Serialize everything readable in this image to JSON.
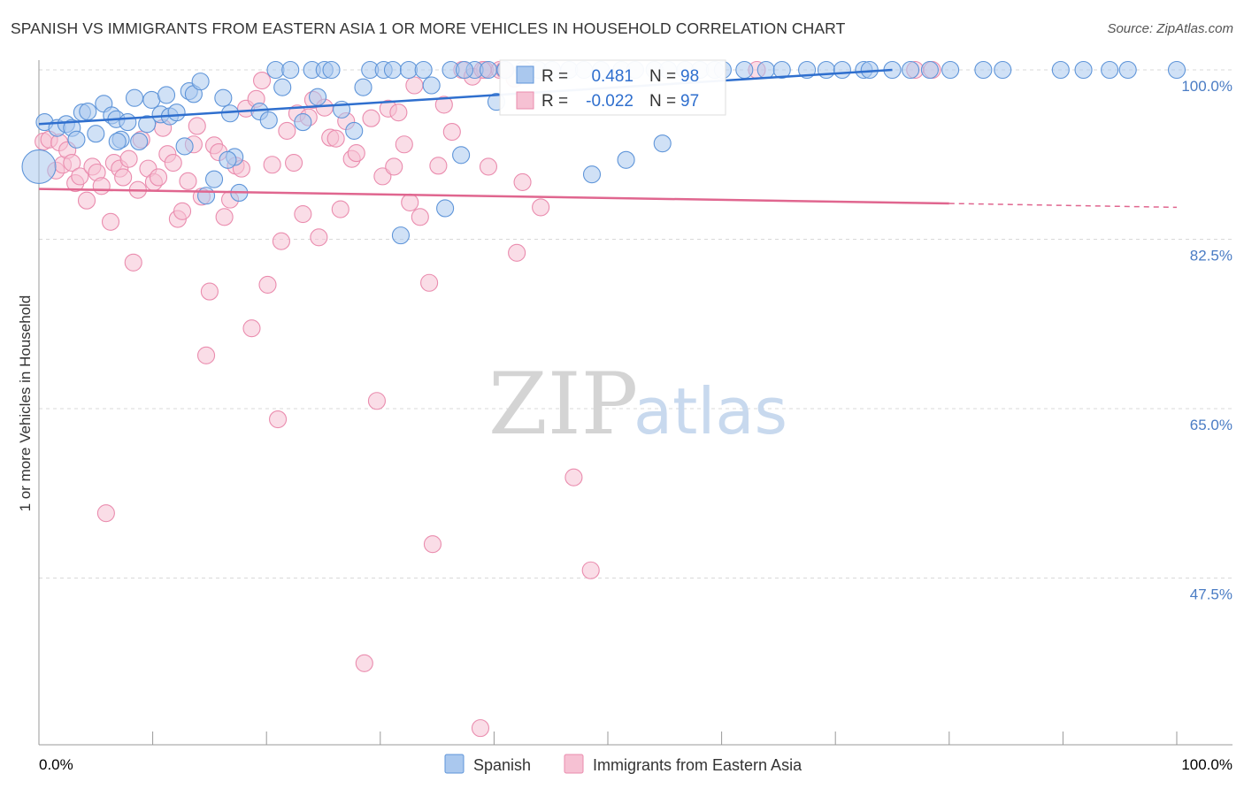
{
  "title": "SPANISH VS IMMIGRANTS FROM EASTERN ASIA 1 OR MORE VEHICLES IN HOUSEHOLD CORRELATION CHART",
  "source": "Source: ZipAtlas.com",
  "watermark": {
    "zip": "ZIP",
    "atlas": "atlas"
  },
  "colors": {
    "blue_fill": "#aac8ee",
    "blue_stroke": "#5f95d9",
    "blue_line": "#2f6fce",
    "pink_fill": "#f6c1d3",
    "pink_stroke": "#ea8cae",
    "pink_line": "#e0668f",
    "tick_label": "#4a7cc4",
    "grid": "#d8d8d8",
    "axis": "#999999"
  },
  "stats": [
    {
      "r_label": "R =",
      "r_value": "0.481",
      "n_label": "N =",
      "n_value": "98"
    },
    {
      "r_label": "R =",
      "r_value": "-0.022",
      "n_label": "N =",
      "n_value": "97"
    }
  ],
  "chart_data": {
    "type": "scatter",
    "title": "SPANISH VS IMMIGRANTS FROM EASTERN ASIA 1 OR MORE VEHICLES IN HOUSEHOLD CORRELATION CHART",
    "xlabel": "",
    "ylabel": "1 or more Vehicles in Household",
    "xlim": [
      0,
      100
    ],
    "ylim": [
      30,
      101.5
    ],
    "x_tick_labels": [
      "0.0%",
      "100.0%"
    ],
    "y_ticks": [
      100.0,
      82.5,
      65.0,
      47.5
    ],
    "y_tick_labels": [
      "100.0%",
      "82.5%",
      "65.0%",
      "47.5%"
    ],
    "grid": true,
    "legend_position": "bottom-center",
    "series": [
      {
        "name": "Spanish",
        "trend": {
          "x": [
            0,
            75
          ],
          "y": [
            94.4,
            100.0
          ]
        },
        "points": [
          [
            0,
            90
          ],
          [
            0.5,
            94.6
          ],
          [
            1.6,
            94.0
          ],
          [
            2.4,
            94.4
          ],
          [
            2.9,
            94.0
          ],
          [
            3.3,
            92.8
          ],
          [
            3.8,
            95.6
          ],
          [
            4.3,
            95.7
          ],
          [
            5.0,
            93.4
          ],
          [
            5.7,
            96.5
          ],
          [
            6.4,
            95.3
          ],
          [
            6.8,
            94.9
          ],
          [
            7.2,
            92.8
          ],
          [
            7.8,
            94.6
          ],
          [
            8.4,
            97.1
          ],
          [
            8.8,
            92.6
          ],
          [
            9.5,
            94.4
          ],
          [
            9.9,
            96.9
          ],
          [
            10.7,
            95.4
          ],
          [
            11.2,
            97.4
          ],
          [
            11.5,
            95.2
          ],
          [
            12.1,
            95.6
          ],
          [
            12.8,
            92.1
          ],
          [
            13.2,
            97.8
          ],
          [
            13.6,
            97.5
          ],
          [
            14.2,
            98.8
          ],
          [
            14.7,
            87.0
          ],
          [
            15.4,
            88.7
          ],
          [
            16.2,
            97.1
          ],
          [
            16.8,
            95.5
          ],
          [
            17.2,
            91.0
          ],
          [
            17.6,
            87.3
          ],
          [
            19.4,
            95.7
          ],
          [
            20.2,
            94.8
          ],
          [
            20.8,
            100.0
          ],
          [
            21.4,
            98.2
          ],
          [
            22.1,
            100.0
          ],
          [
            23.2,
            94.6
          ],
          [
            24.0,
            100.0
          ],
          [
            24.5,
            97.2
          ],
          [
            25.1,
            100.0
          ],
          [
            25.7,
            100.0
          ],
          [
            26.6,
            95.9
          ],
          [
            27.7,
            93.7
          ],
          [
            28.5,
            98.2
          ],
          [
            29.1,
            100.0
          ],
          [
            30.3,
            100.0
          ],
          [
            31.1,
            100.0
          ],
          [
            31.8,
            82.9
          ],
          [
            32.5,
            100.0
          ],
          [
            33.8,
            100.0
          ],
          [
            34.5,
            98.4
          ],
          [
            35.7,
            85.7
          ],
          [
            36.2,
            100.0
          ],
          [
            37.1,
            91.2
          ],
          [
            38.3,
            100.0
          ],
          [
            39.5,
            100.0
          ],
          [
            40.2,
            96.7
          ],
          [
            41.0,
            100.0
          ],
          [
            42.6,
            100.0
          ],
          [
            43.9,
            100.0
          ],
          [
            45.1,
            100.0
          ],
          [
            46.6,
            100.0
          ],
          [
            47.9,
            100.0
          ],
          [
            49.4,
            100.0
          ],
          [
            51.2,
            100.0
          ],
          [
            52.4,
            100.0
          ],
          [
            54.1,
            100.0
          ],
          [
            55.3,
            100.0
          ],
          [
            56.8,
            100.0
          ],
          [
            58.1,
            100.0
          ],
          [
            59.4,
            100.0
          ],
          [
            60.1,
            100.0
          ],
          [
            62.0,
            100.0
          ],
          [
            63.9,
            100.0
          ],
          [
            65.3,
            100.0
          ],
          [
            67.5,
            100.0
          ],
          [
            69.2,
            100.0
          ],
          [
            70.6,
            100.0
          ],
          [
            72.5,
            100.0
          ],
          [
            73.0,
            100.0
          ],
          [
            75.0,
            100.0
          ],
          [
            76.6,
            100.0
          ],
          [
            78.3,
            100.0
          ],
          [
            80.1,
            100.0
          ],
          [
            83.0,
            100.0
          ],
          [
            84.7,
            100.0
          ],
          [
            89.8,
            100.0
          ],
          [
            91.8,
            100.0
          ],
          [
            94.1,
            100.0
          ],
          [
            95.7,
            100.0
          ],
          [
            100.0,
            100.0
          ],
          [
            48.6,
            89.2
          ],
          [
            51.6,
            90.7
          ],
          [
            54.8,
            92.4
          ],
          [
            37.4,
            100.0
          ],
          [
            16.6,
            90.7
          ],
          [
            6.9,
            92.6
          ]
        ]
      },
      {
        "name": "Immigrants from Eastern Asia",
        "trend": {
          "x": [
            0,
            80,
            100
          ],
          "y": [
            87.7,
            86.2,
            85.8
          ]
        },
        "trend_solid_until": 80,
        "points": [
          [
            0.4,
            92.6
          ],
          [
            0.9,
            92.8
          ],
          [
            1.5,
            89.6
          ],
          [
            1.8,
            92.5
          ],
          [
            2.1,
            90.2
          ],
          [
            2.5,
            91.7
          ],
          [
            2.9,
            90.4
          ],
          [
            3.2,
            88.3
          ],
          [
            3.6,
            89.0
          ],
          [
            4.2,
            86.5
          ],
          [
            4.7,
            90.0
          ],
          [
            5.1,
            89.4
          ],
          [
            5.5,
            88.0
          ],
          [
            5.9,
            54.2
          ],
          [
            6.3,
            84.3
          ],
          [
            6.6,
            90.4
          ],
          [
            7.1,
            89.8
          ],
          [
            7.4,
            88.9
          ],
          [
            7.9,
            90.8
          ],
          [
            8.3,
            80.1
          ],
          [
            8.7,
            87.6
          ],
          [
            9.0,
            92.8
          ],
          [
            9.6,
            89.8
          ],
          [
            10.1,
            88.4
          ],
          [
            10.5,
            88.9
          ],
          [
            10.9,
            94.0
          ],
          [
            11.3,
            91.3
          ],
          [
            11.8,
            90.4
          ],
          [
            12.2,
            84.6
          ],
          [
            12.6,
            85.4
          ],
          [
            13.1,
            88.5
          ],
          [
            13.6,
            92.3
          ],
          [
            13.9,
            94.2
          ],
          [
            14.3,
            86.9
          ],
          [
            14.7,
            70.5
          ],
          [
            15.0,
            77.1
          ],
          [
            15.4,
            92.2
          ],
          [
            15.8,
            91.5
          ],
          [
            16.3,
            84.8
          ],
          [
            16.8,
            86.6
          ],
          [
            17.3,
            90.1
          ],
          [
            17.8,
            89.8
          ],
          [
            18.2,
            96.0
          ],
          [
            18.7,
            73.3
          ],
          [
            19.1,
            97.0
          ],
          [
            19.6,
            98.9
          ],
          [
            20.1,
            77.8
          ],
          [
            20.5,
            90.2
          ],
          [
            21.0,
            63.9
          ],
          [
            21.3,
            82.3
          ],
          [
            21.8,
            93.7
          ],
          [
            22.4,
            90.4
          ],
          [
            22.7,
            95.5
          ],
          [
            23.2,
            85.1
          ],
          [
            23.7,
            95.1
          ],
          [
            24.1,
            96.9
          ],
          [
            24.6,
            82.7
          ],
          [
            25.1,
            96.1
          ],
          [
            25.6,
            93.0
          ],
          [
            26.1,
            92.9
          ],
          [
            26.5,
            85.6
          ],
          [
            27.0,
            94.7
          ],
          [
            27.5,
            90.8
          ],
          [
            27.9,
            91.4
          ],
          [
            28.6,
            38.7
          ],
          [
            29.2,
            95.0
          ],
          [
            29.7,
            65.8
          ],
          [
            30.2,
            89.0
          ],
          [
            30.7,
            96.0
          ],
          [
            31.2,
            90.0
          ],
          [
            31.6,
            95.6
          ],
          [
            32.1,
            92.3
          ],
          [
            32.6,
            86.3
          ],
          [
            33.0,
            98.4
          ],
          [
            33.5,
            84.8
          ],
          [
            34.3,
            78.0
          ],
          [
            34.6,
            51.0
          ],
          [
            35.1,
            90.1
          ],
          [
            35.6,
            96.4
          ],
          [
            36.3,
            93.6
          ],
          [
            37.2,
            100.0
          ],
          [
            38.1,
            99.3
          ],
          [
            39.2,
            100.0
          ],
          [
            40.5,
            100.0
          ],
          [
            41.8,
            99.1
          ],
          [
            38.8,
            32.0
          ],
          [
            42.0,
            81.1
          ],
          [
            47.0,
            57.9
          ],
          [
            48.5,
            48.3
          ],
          [
            39.5,
            90.0
          ],
          [
            42.5,
            88.4
          ],
          [
            44.1,
            85.8
          ],
          [
            63.1,
            100.0
          ],
          [
            77.0,
            100.0
          ],
          [
            78.5,
            100.0
          ],
          [
            39.0,
            100.0
          ],
          [
            40.9,
            100.0
          ]
        ]
      }
    ]
  },
  "legend": [
    {
      "label": "Spanish"
    },
    {
      "label": "Immigrants from Eastern Asia"
    }
  ]
}
